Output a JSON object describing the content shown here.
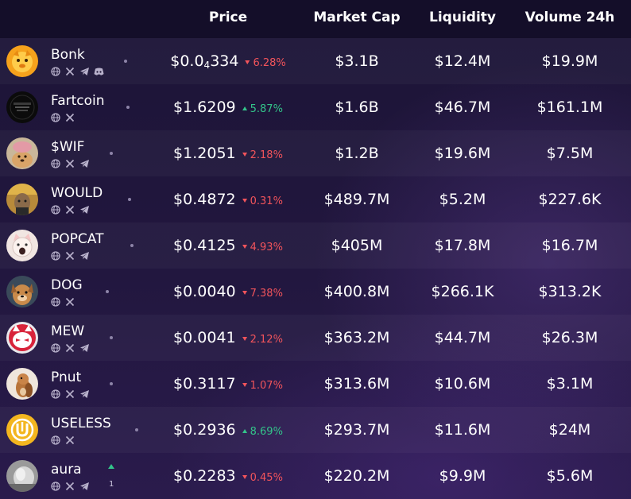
{
  "columns": {
    "price": "Price",
    "market_cap": "Market Cap",
    "liquidity": "Liquidity",
    "volume": "Volume 24h"
  },
  "rows": [
    {
      "name": "Bonk",
      "price_prefix": "$0.0",
      "price_sub": "4",
      "price_rest": "334",
      "change": "6.28%",
      "direction": "down",
      "market_cap": "$3.1B",
      "liquidity": "$12.4M",
      "volume": "$19.9M",
      "socials": [
        "globe-icon",
        "x-icon",
        "telegram-icon",
        "discord-icon"
      ]
    },
    {
      "name": "Fartcoin",
      "price_prefix": "$1.6209",
      "price_sub": "",
      "price_rest": "",
      "change": "5.87%",
      "direction": "up",
      "market_cap": "$1.6B",
      "liquidity": "$46.7M",
      "volume": "$161.1M",
      "socials": [
        "globe-icon",
        "x-icon"
      ]
    },
    {
      "name": "$WIF",
      "price_prefix": "$1.2051",
      "price_sub": "",
      "price_rest": "",
      "change": "2.18%",
      "direction": "down",
      "market_cap": "$1.2B",
      "liquidity": "$19.6M",
      "volume": "$7.5M",
      "socials": [
        "globe-icon",
        "x-icon",
        "telegram-icon"
      ]
    },
    {
      "name": "WOULD",
      "price_prefix": "$0.4872",
      "price_sub": "",
      "price_rest": "",
      "change": "0.31%",
      "direction": "down",
      "market_cap": "$489.7M",
      "liquidity": "$5.2M",
      "volume": "$227.6K",
      "socials": [
        "globe-icon",
        "x-icon",
        "telegram-icon"
      ]
    },
    {
      "name": "POPCAT",
      "price_prefix": "$0.4125",
      "price_sub": "",
      "price_rest": "",
      "change": "4.93%",
      "direction": "down",
      "market_cap": "$405M",
      "liquidity": "$17.8M",
      "volume": "$16.7M",
      "socials": [
        "globe-icon",
        "x-icon",
        "telegram-icon"
      ]
    },
    {
      "name": "DOG",
      "price_prefix": "$0.0040",
      "price_sub": "",
      "price_rest": "",
      "change": "7.38%",
      "direction": "down",
      "market_cap": "$400.8M",
      "liquidity": "$266.1K",
      "volume": "$313.2K",
      "socials": [
        "globe-icon",
        "x-icon"
      ]
    },
    {
      "name": "MEW",
      "price_prefix": "$0.0041",
      "price_sub": "",
      "price_rest": "",
      "change": "2.12%",
      "direction": "down",
      "market_cap": "$363.2M",
      "liquidity": "$44.7M",
      "volume": "$26.3M",
      "socials": [
        "globe-icon",
        "x-icon",
        "telegram-icon"
      ]
    },
    {
      "name": "Pnut",
      "price_prefix": "$0.3117",
      "price_sub": "",
      "price_rest": "",
      "change": "1.07%",
      "direction": "down",
      "market_cap": "$313.6M",
      "liquidity": "$10.6M",
      "volume": "$3.1M",
      "socials": [
        "globe-icon",
        "x-icon",
        "telegram-icon"
      ]
    },
    {
      "name": "USELESS",
      "price_prefix": "$0.2936",
      "price_sub": "",
      "price_rest": "",
      "change": "8.69%",
      "direction": "up",
      "market_cap": "$293.7M",
      "liquidity": "$11.6M",
      "volume": "$24M",
      "socials": [
        "globe-icon",
        "x-icon"
      ]
    },
    {
      "name": "aura",
      "price_prefix": "$0.2283",
      "price_sub": "",
      "price_rest": "",
      "change": "0.45%",
      "direction": "down",
      "market_cap": "$220.2M",
      "liquidity": "$9.9M",
      "volume": "$5.6M",
      "socials": [
        "globe-icon",
        "x-icon",
        "telegram-icon"
      ],
      "rank_change": "1"
    }
  ],
  "colors": {
    "up": "#33c48a",
    "down": "#f2545b",
    "header_bg": "#140e29"
  }
}
